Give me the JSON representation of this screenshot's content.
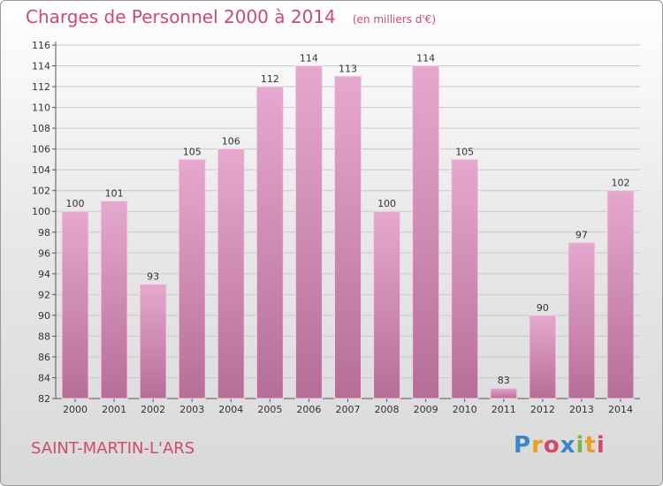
{
  "chart_data": {
    "type": "bar",
    "title": "Charges de Personnel 2000 à 2014",
    "unit_note": "(en milliers d'€)",
    "categories": [
      "2000",
      "2001",
      "2002",
      "2003",
      "2004",
      "2005",
      "2006",
      "2007",
      "2008",
      "2009",
      "2010",
      "2011",
      "2012",
      "2013",
      "2014"
    ],
    "values": [
      100,
      101,
      93,
      105,
      106,
      112,
      114,
      113,
      100,
      114,
      105,
      83,
      90,
      97,
      102
    ],
    "ylim": [
      82,
      116
    ],
    "yticks": [
      82,
      84,
      86,
      88,
      90,
      92,
      94,
      96,
      98,
      100,
      102,
      104,
      106,
      108,
      110,
      112,
      114,
      116
    ],
    "grid": true,
    "bar_color": "#d98bb8"
  },
  "place_name": "SAINT-MARTIN-L'ARS",
  "logo": {
    "text": "Proxiti",
    "colors": [
      "#3a86c8",
      "#e8a020",
      "#d04a6c",
      "#3a86c8",
      "#7ab648",
      "#e8a020",
      "#d04a6c"
    ]
  }
}
